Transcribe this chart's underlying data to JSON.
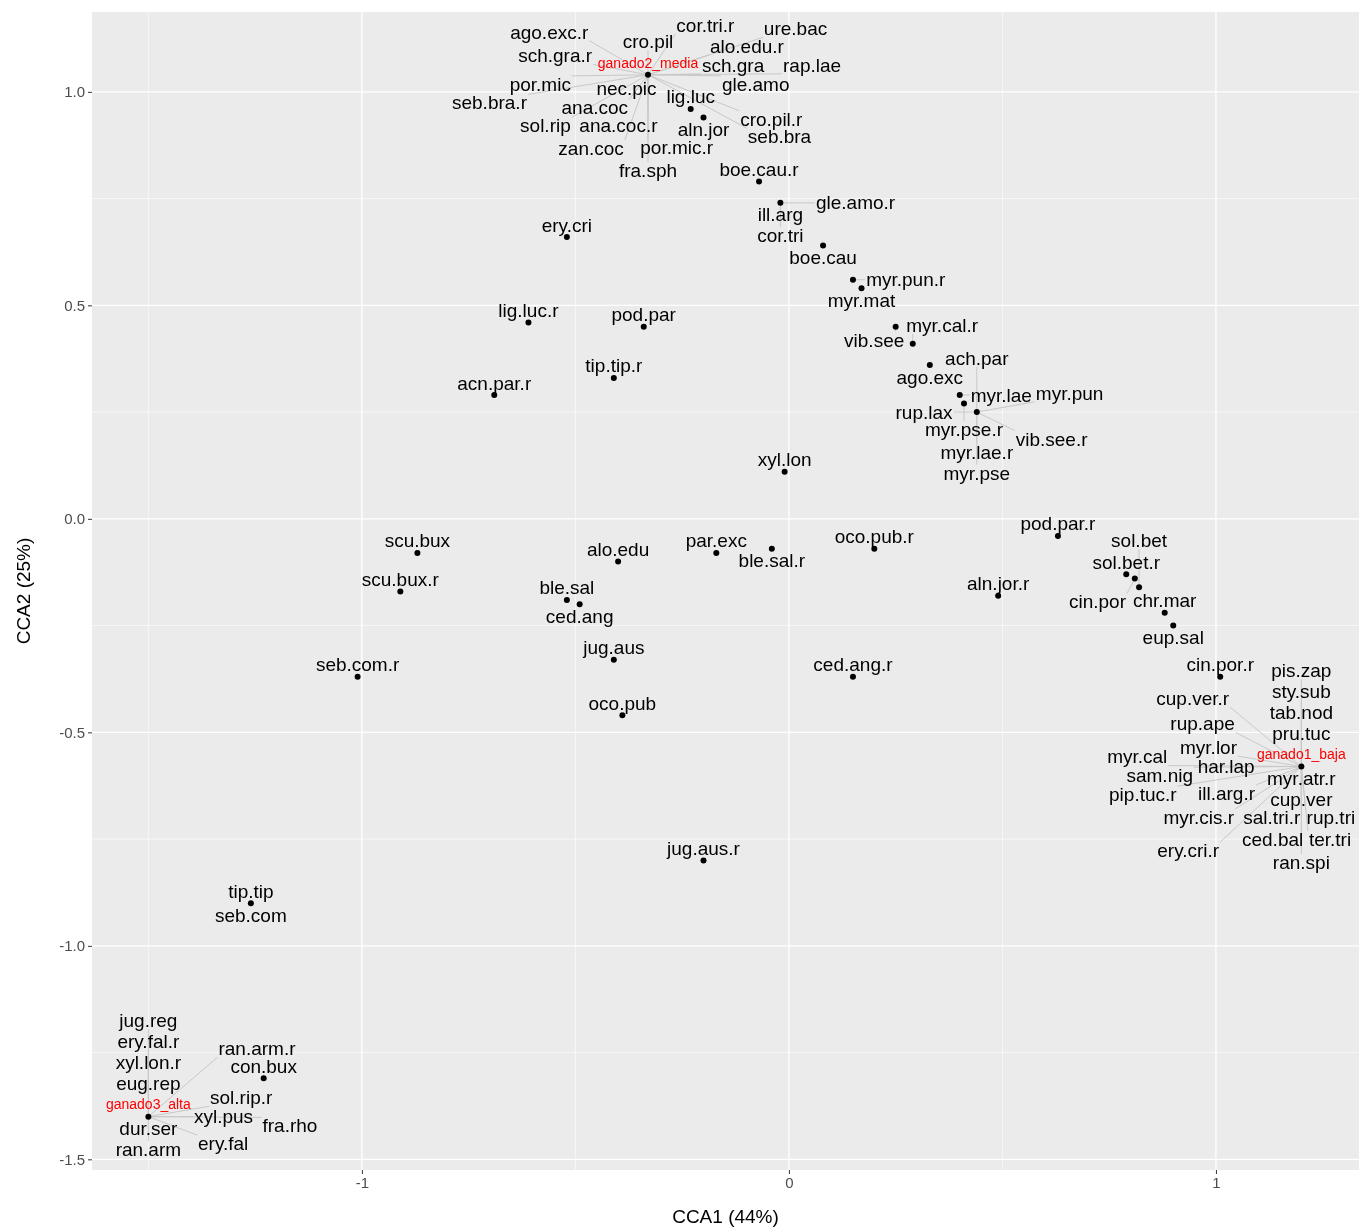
{
  "chart_data": {
    "type": "scatter",
    "xlabel": "CCA1 (44%)",
    "ylabel": "CCA2 (25%)",
    "xlim": [
      -1.632,
      1.335
    ],
    "ylim": [
      -1.525,
      1.187
    ],
    "xticks": [
      -1,
      0,
      1
    ],
    "yticks": [
      {
        "value": -1.5,
        "label": "-1.5"
      },
      {
        "value": -1,
        "label": "-1.0"
      },
      {
        "value": -0.5,
        "label": "-0.5"
      },
      {
        "value": 0,
        "label": "0.0"
      },
      {
        "value": 0.5,
        "label": "0.5"
      },
      {
        "value": 1,
        "label": "1.0"
      }
    ],
    "grid": true,
    "marker": "circle",
    "series": [
      {
        "color": "#000000",
        "x": [
          -0.23,
          -0.2,
          -0.07,
          -0.02,
          0.08,
          0.17,
          0.15,
          0.25,
          0.29,
          0.33,
          0.4,
          0.41,
          0.44,
          -0.52,
          -0.61,
          -0.34,
          -0.41,
          -0.69,
          -0.01,
          0.63,
          -0.87,
          -0.91,
          -1.01,
          -0.4,
          -0.17,
          -0.04,
          0.2,
          0.88,
          0.9,
          1.01,
          0.79,
          0.81,
          0.82,
          0.49,
          -0.52,
          -0.49,
          -0.41,
          -0.39,
          0.15,
          -0.2,
          -1.26,
          -1.23
        ],
        "values": [
          0.96,
          0.94,
          0.79,
          0.74,
          0.64,
          0.54,
          0.56,
          0.45,
          0.41,
          0.36,
          0.29,
          0.27,
          0.25,
          0.66,
          0.46,
          0.45,
          0.33,
          0.29,
          0.11,
          -0.04,
          -0.08,
          -0.17,
          -0.37,
          -0.1,
          -0.08,
          -0.07,
          -0.07,
          -0.22,
          -0.25,
          -0.37,
          -0.13,
          -0.14,
          -0.16,
          -0.18,
          -0.19,
          -0.2,
          -0.33,
          -0.46,
          -0.37,
          -0.8,
          -0.9,
          -1.31
        ]
      },
      {
        "color": "#000000",
        "x": [
          1.2,
          -0.33,
          -1.5
        ],
        "values": [
          -0.58,
          1.04,
          -1.4
        ]
      }
    ],
    "annotations": [
      {
        "text": "lig.luc",
        "x": -0.23,
        "y": 0.96
      },
      {
        "text": "aln.jor",
        "x": -0.2,
        "y": 0.94
      },
      {
        "text": "boe.cau.r",
        "x": -0.07,
        "y": 0.79
      },
      {
        "text": "ill.arg",
        "x": -0.02,
        "y": 0.74
      },
      {
        "text": "gle.amo.r",
        "x": -0.02,
        "y": 0.74
      },
      {
        "text": "cor.tri",
        "x": -0.02,
        "y": 0.74
      },
      {
        "text": "boe.cau",
        "x": 0.08,
        "y": 0.64
      },
      {
        "text": "myr.mat",
        "x": 0.17,
        "y": 0.54
      },
      {
        "text": "myr.pun.r",
        "x": 0.15,
        "y": 0.56
      },
      {
        "text": "vib.see",
        "x": 0.25,
        "y": 0.45
      },
      {
        "text": "myr.cal.r",
        "x": 0.29,
        "y": 0.41
      },
      {
        "text": "ago.exc",
        "x": 0.33,
        "y": 0.36
      },
      {
        "text": "myr.lae",
        "x": 0.4,
        "y": 0.29
      },
      {
        "text": "myr.pse.r",
        "x": 0.41,
        "y": 0.27
      },
      {
        "text": "rup.lax",
        "x": 0.44,
        "y": 0.25
      },
      {
        "text": "myr.lae.r",
        "x": 0.44,
        "y": 0.25
      },
      {
        "text": "ach.par",
        "x": 0.44,
        "y": 0.25
      },
      {
        "text": "vib.see.r",
        "x": 0.44,
        "y": 0.25
      },
      {
        "text": "myr.pun",
        "x": 0.44,
        "y": 0.25
      },
      {
        "text": "myr.pse",
        "x": 0.44,
        "y": 0.25
      },
      {
        "text": "ery.cri",
        "x": -0.52,
        "y": 0.66
      },
      {
        "text": "lig.luc.r",
        "x": -0.61,
        "y": 0.46
      },
      {
        "text": "pod.par",
        "x": -0.34,
        "y": 0.45
      },
      {
        "text": "tip.tip.r",
        "x": -0.41,
        "y": 0.33
      },
      {
        "text": "acn.par.r",
        "x": -0.69,
        "y": 0.29
      },
      {
        "text": "xyl.lon",
        "x": -0.01,
        "y": 0.11
      },
      {
        "text": "pod.par.r",
        "x": 0.63,
        "y": -0.04
      },
      {
        "text": "scu.bux",
        "x": -0.87,
        "y": -0.08
      },
      {
        "text": "scu.bux.r",
        "x": -0.91,
        "y": -0.17
      },
      {
        "text": "seb.com.r",
        "x": -1.01,
        "y": -0.37
      },
      {
        "text": "alo.edu",
        "x": -0.4,
        "y": -0.1
      },
      {
        "text": "par.exc",
        "x": -0.17,
        "y": -0.08
      },
      {
        "text": "ble.sal.r",
        "x": -0.04,
        "y": -0.07
      },
      {
        "text": "oco.pub.r",
        "x": 0.2,
        "y": -0.07
      },
      {
        "text": "chr.mar",
        "x": 0.88,
        "y": -0.22
      },
      {
        "text": "eup.sal",
        "x": 0.9,
        "y": -0.25
      },
      {
        "text": "cin.por.r",
        "x": 1.01,
        "y": -0.37
      },
      {
        "text": "sol.bet.r",
        "x": 0.79,
        "y": -0.13
      },
      {
        "text": "cin.por",
        "x": 0.81,
        "y": -0.14
      },
      {
        "text": "sol.bet",
        "x": 0.82,
        "y": -0.16
      },
      {
        "text": "aln.jor.r",
        "x": 0.49,
        "y": -0.18
      },
      {
        "text": "ble.sal",
        "x": -0.52,
        "y": -0.19
      },
      {
        "text": "ced.ang",
        "x": -0.49,
        "y": -0.2
      },
      {
        "text": "jug.aus",
        "x": -0.41,
        "y": -0.33
      },
      {
        "text": "oco.pub",
        "x": -0.39,
        "y": -0.46
      },
      {
        "text": "ced.ang.r",
        "x": 0.15,
        "y": -0.37
      },
      {
        "text": "jug.aus.r",
        "x": -0.2,
        "y": -0.8
      },
      {
        "text": "tip.tip",
        "x": -1.26,
        "y": -0.9
      },
      {
        "text": "seb.com",
        "x": -1.26,
        "y": -0.9
      },
      {
        "text": "con.bux",
        "x": -1.23,
        "y": -1.31
      },
      {
        "text": "nec.pic",
        "x": -0.33,
        "y": 1.04
      },
      {
        "text": "cro.pil",
        "x": -0.33,
        "y": 1.04
      },
      {
        "text": "ana.coc",
        "x": -0.33,
        "y": 1.04
      },
      {
        "text": "sch.gra",
        "x": -0.33,
        "y": 1.04
      },
      {
        "text": "ana.coc.r",
        "x": -0.33,
        "y": 1.04
      },
      {
        "text": "sch.gra.r",
        "x": -0.33,
        "y": 1.04
      },
      {
        "text": "alo.edu.r",
        "x": -0.33,
        "y": 1.04
      },
      {
        "text": "cor.tri.r",
        "x": -0.33,
        "y": 1.04
      },
      {
        "text": "gle.amo",
        "x": -0.33,
        "y": 1.04
      },
      {
        "text": "por.mic",
        "x": -0.33,
        "y": 1.04
      },
      {
        "text": "por.mic.r",
        "x": -0.33,
        "y": 1.04
      },
      {
        "text": "ago.exc.r",
        "x": -0.33,
        "y": 1.04
      },
      {
        "text": "zan.coc",
        "x": -0.33,
        "y": 1.04
      },
      {
        "text": "sol.rip",
        "x": -0.33,
        "y": 1.04
      },
      {
        "text": "cro.pil.r",
        "x": -0.33,
        "y": 1.04
      },
      {
        "text": "fra.sph",
        "x": -0.33,
        "y": 1.04
      },
      {
        "text": "ure.bac",
        "x": -0.33,
        "y": 1.04
      },
      {
        "text": "rap.lae",
        "x": -0.33,
        "y": 1.04
      },
      {
        "text": "seb.bra",
        "x": -0.33,
        "y": 1.04
      },
      {
        "text": "seb.bra.r",
        "x": -0.33,
        "y": 1.04
      },
      {
        "text": "myr.atr.r",
        "x": 1.2,
        "y": -0.58
      },
      {
        "text": "pru.tuc",
        "x": 1.2,
        "y": -0.58
      },
      {
        "text": "cup.ver",
        "x": 1.2,
        "y": -0.58
      },
      {
        "text": "har.lap",
        "x": 1.2,
        "y": -0.58
      },
      {
        "text": "tab.nod",
        "x": 1.2,
        "y": -0.58
      },
      {
        "text": "sal.tri.r",
        "x": 1.2,
        "y": -0.58
      },
      {
        "text": "ill.arg.r",
        "x": 1.2,
        "y": -0.58
      },
      {
        "text": "rup.tri",
        "x": 1.2,
        "y": -0.58
      },
      {
        "text": "myr.lor",
        "x": 1.2,
        "y": -0.58
      },
      {
        "text": "sty.sub",
        "x": 1.2,
        "y": -0.58
      },
      {
        "text": "ced.bal",
        "x": 1.2,
        "y": -0.58
      },
      {
        "text": "rup.ape",
        "x": 1.2,
        "y": -0.58
      },
      {
        "text": "myr.cis.r",
        "x": 1.2,
        "y": -0.58
      },
      {
        "text": "sam.nig",
        "x": 1.2,
        "y": -0.58
      },
      {
        "text": "pis.zap",
        "x": 1.2,
        "y": -0.58
      },
      {
        "text": "ran.spi",
        "x": 1.2,
        "y": -0.58
      },
      {
        "text": "cup.ver.r",
        "x": 1.2,
        "y": -0.58
      },
      {
        "text": "pip.tuc.r",
        "x": 1.2,
        "y": -0.58
      },
      {
        "text": "ter.tri",
        "x": 1.2,
        "y": -0.58
      },
      {
        "text": "myr.cal",
        "x": 1.2,
        "y": -0.58
      },
      {
        "text": "ery.cri.r",
        "x": 1.2,
        "y": -0.58
      },
      {
        "text": "dur.ser",
        "x": -1.5,
        "y": -1.4
      },
      {
        "text": "eug.rep",
        "x": -1.5,
        "y": -1.4
      },
      {
        "text": "ran.arm",
        "x": -1.5,
        "y": -1.4
      },
      {
        "text": "xyl.pus",
        "x": -1.5,
        "y": -1.4
      },
      {
        "text": "xyl.lon.r",
        "x": -1.5,
        "y": -1.4
      },
      {
        "text": "ery.fal",
        "x": -1.5,
        "y": -1.4
      },
      {
        "text": "sol.rip.r",
        "x": -1.5,
        "y": -1.4
      },
      {
        "text": "ery.fal.r",
        "x": -1.5,
        "y": -1.4
      },
      {
        "text": "fra.rho",
        "x": -1.5,
        "y": -1.4
      },
      {
        "text": "jug.reg",
        "x": -1.5,
        "y": -1.4
      },
      {
        "text": "ran.arm.r",
        "x": -1.5,
        "y": -1.4
      },
      {
        "text": "ganado1_baja",
        "x": 1.2,
        "y": -0.58
      },
      {
        "text": "ganado2_media",
        "x": -0.33,
        "y": 1.04
      },
      {
        "text": "ganado3_alta",
        "x": -1.5,
        "y": -1.4
      }
    ]
  }
}
